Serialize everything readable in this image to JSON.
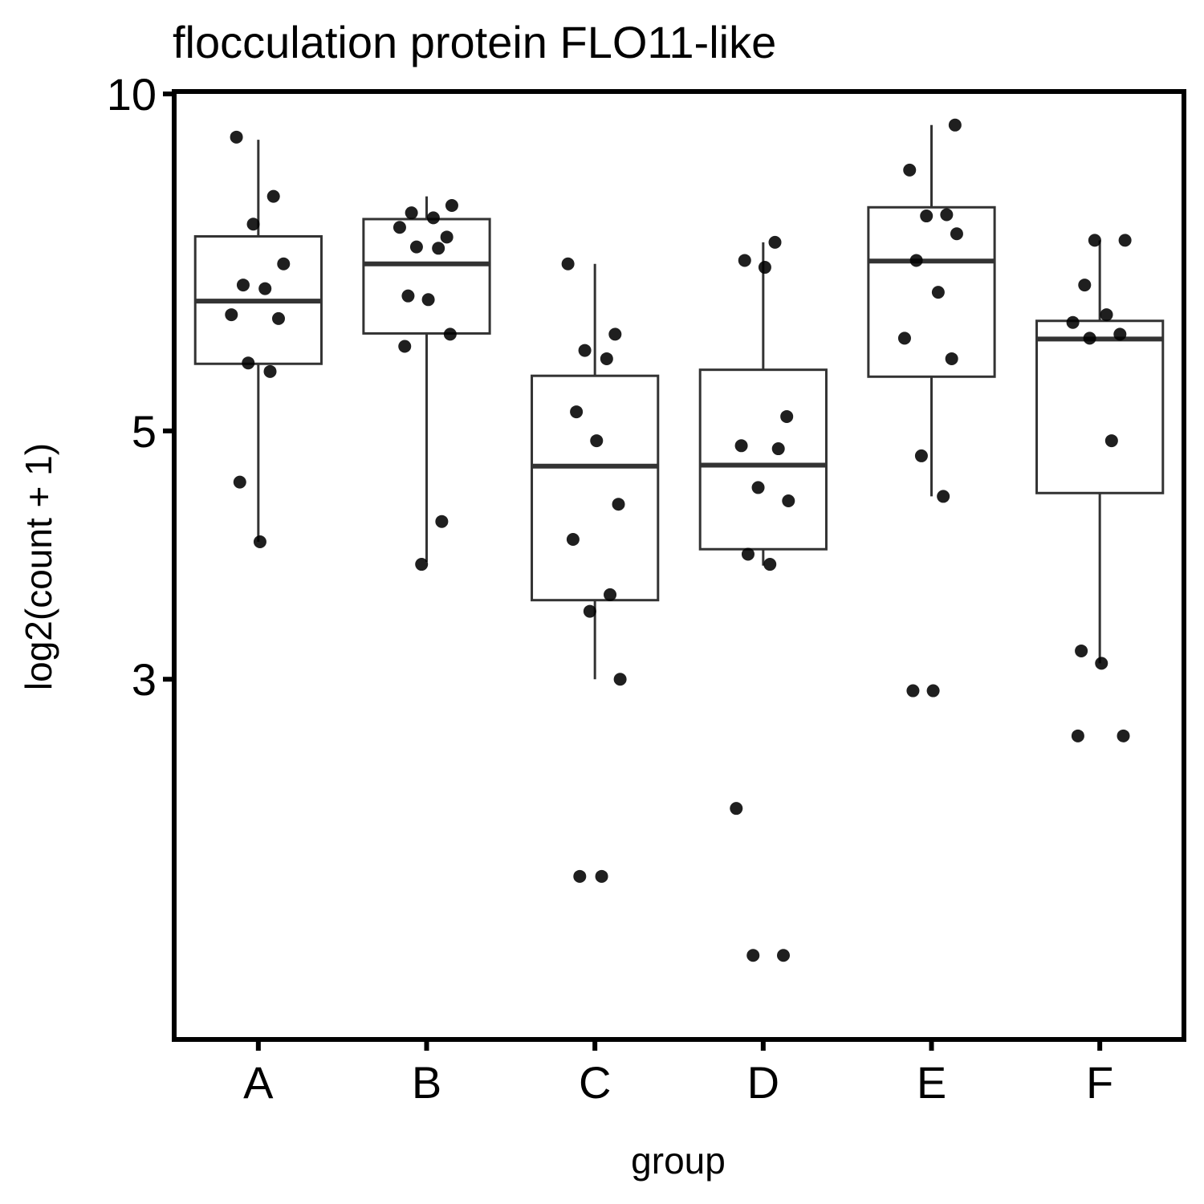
{
  "chart_data": {
    "type": "box",
    "title": "flocculation protein FLO11-like",
    "xlabel": "group",
    "ylabel": "log2(count + 1)",
    "y_scale": "log",
    "ylim": [
      1.43,
      10.05
    ],
    "y_ticks": [
      {
        "value": 3,
        "label": "3"
      },
      {
        "value": 5,
        "label": "5"
      },
      {
        "value": 10,
        "label": "10"
      }
    ],
    "grid": false,
    "categories": [
      "A",
      "B",
      "C",
      "D",
      "E",
      "F"
    ],
    "boxes": [
      {
        "group": "A",
        "whisker_low": 3.98,
        "q1": 5.74,
        "median": 6.53,
        "q3": 7.46,
        "whisker_high": 9.1
      },
      {
        "group": "B",
        "whisker_low": 3.82,
        "q1": 6.11,
        "median": 7.05,
        "q3": 7.73,
        "whisker_high": 8.1
      },
      {
        "group": "C",
        "whisker_low": 3.0,
        "q1": 3.53,
        "median": 4.65,
        "q3": 5.6,
        "whisker_high": 7.05
      },
      {
        "group": "D",
        "whisker_low": 3.79,
        "q1": 3.92,
        "median": 4.66,
        "q3": 5.67,
        "whisker_high": 7.37
      },
      {
        "group": "E",
        "whisker_low": 4.37,
        "q1": 5.59,
        "median": 7.09,
        "q3": 7.92,
        "whisker_high": 9.38
      },
      {
        "group": "F",
        "whisker_low": 3.1,
        "q1": 4.4,
        "median": 6.04,
        "q3": 6.27,
        "whisker_high": 7.4
      }
    ],
    "points": [
      {
        "group": "A",
        "values": [
          9.15,
          8.1,
          7.65,
          7.05,
          6.75,
          6.7,
          6.35,
          6.3,
          5.75,
          5.65,
          4.5,
          3.98
        ]
      },
      {
        "group": "B",
        "values": [
          7.95,
          7.83,
          7.75,
          7.6,
          7.45,
          7.3,
          7.28,
          6.6,
          6.55,
          6.1,
          5.95,
          4.15,
          3.8
        ]
      },
      {
        "group": "C",
        "values": [
          7.05,
          6.1,
          5.9,
          5.8,
          5.2,
          4.9,
          4.3,
          4.0,
          3.57,
          3.45,
          3.0,
          2.0,
          2.0
        ]
      },
      {
        "group": "D",
        "values": [
          7.37,
          7.1,
          7.0,
          5.15,
          4.85,
          4.82,
          4.45,
          4.33,
          3.88,
          3.8,
          2.3,
          1.7,
          1.7
        ]
      },
      {
        "group": "E",
        "values": [
          9.38,
          8.55,
          7.8,
          7.78,
          7.5,
          7.1,
          6.65,
          6.05,
          5.8,
          4.75,
          4.37,
          2.93,
          2.93
        ]
      },
      {
        "group": "F",
        "values": [
          7.4,
          7.4,
          6.75,
          6.35,
          6.25,
          6.1,
          6.05,
          4.9,
          3.18,
          3.1,
          2.67,
          2.67
        ]
      }
    ]
  }
}
